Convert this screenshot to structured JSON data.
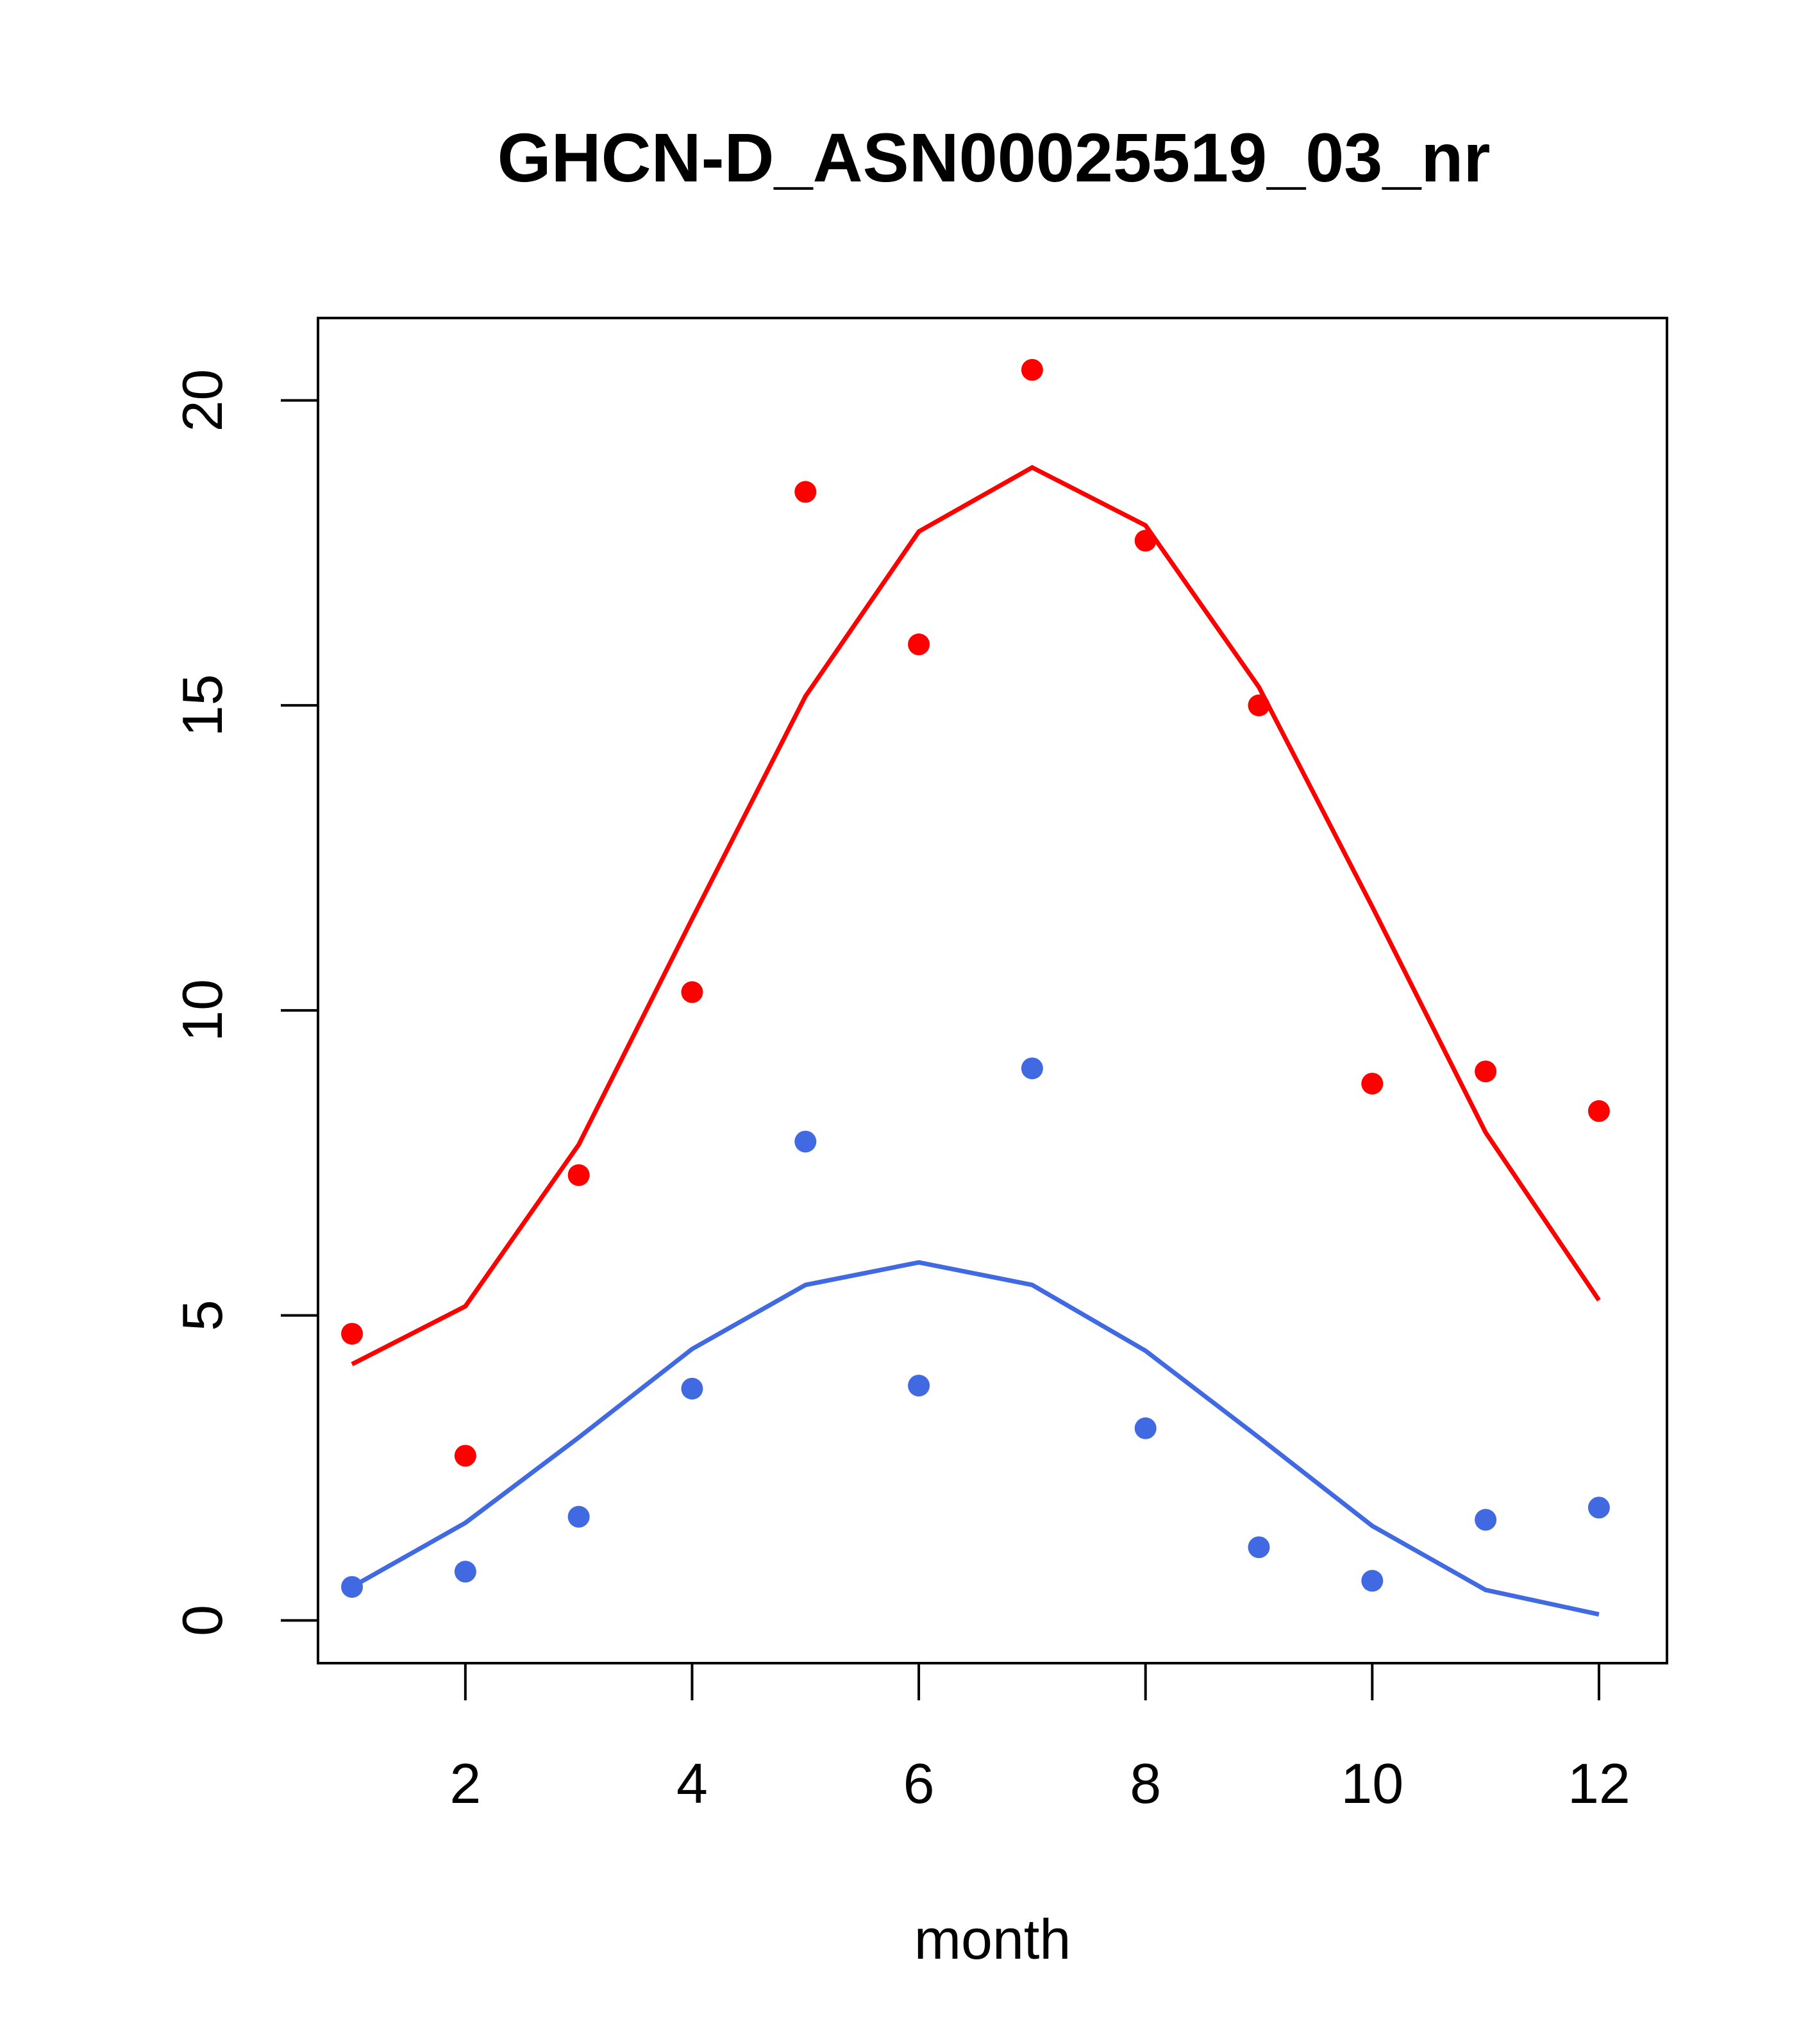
{
  "chart_data": {
    "type": "scatter",
    "title": "GHCN-D_ASN00025519_03_nr",
    "xlabel": "month",
    "ylabel": "",
    "xlim": [
      0.7,
      12.6
    ],
    "ylim": [
      -0.7,
      21.35
    ],
    "x_ticks": [
      2,
      4,
      6,
      8,
      10,
      12
    ],
    "y_ticks": [
      0,
      5,
      10,
      15,
      20
    ],
    "grid": false,
    "legend": "none",
    "x": [
      1,
      2,
      3,
      4,
      5,
      6,
      7,
      8,
      9,
      10,
      11,
      12
    ],
    "series": [
      {
        "color": "#ff0000",
        "points": [
          4.7,
          2.7,
          7.3,
          10.3,
          18.5,
          16.0,
          20.5,
          17.7,
          15.0,
          8.8,
          9.0,
          8.35
        ],
        "line": [
          4.2,
          5.15,
          7.8,
          11.5,
          15.15,
          17.85,
          18.9,
          17.95,
          15.3,
          11.7,
          8.0,
          5.25
        ]
      },
      {
        "color": "#4169e1",
        "points": [
          0.55,
          0.8,
          1.7,
          3.8,
          7.85,
          3.85,
          9.05,
          3.15,
          1.2,
          0.65,
          1.65,
          1.85
        ],
        "line": [
          0.55,
          1.6,
          3.0,
          4.45,
          5.5,
          5.87,
          5.5,
          4.42,
          3.0,
          1.55,
          0.5,
          0.1
        ]
      }
    ]
  }
}
